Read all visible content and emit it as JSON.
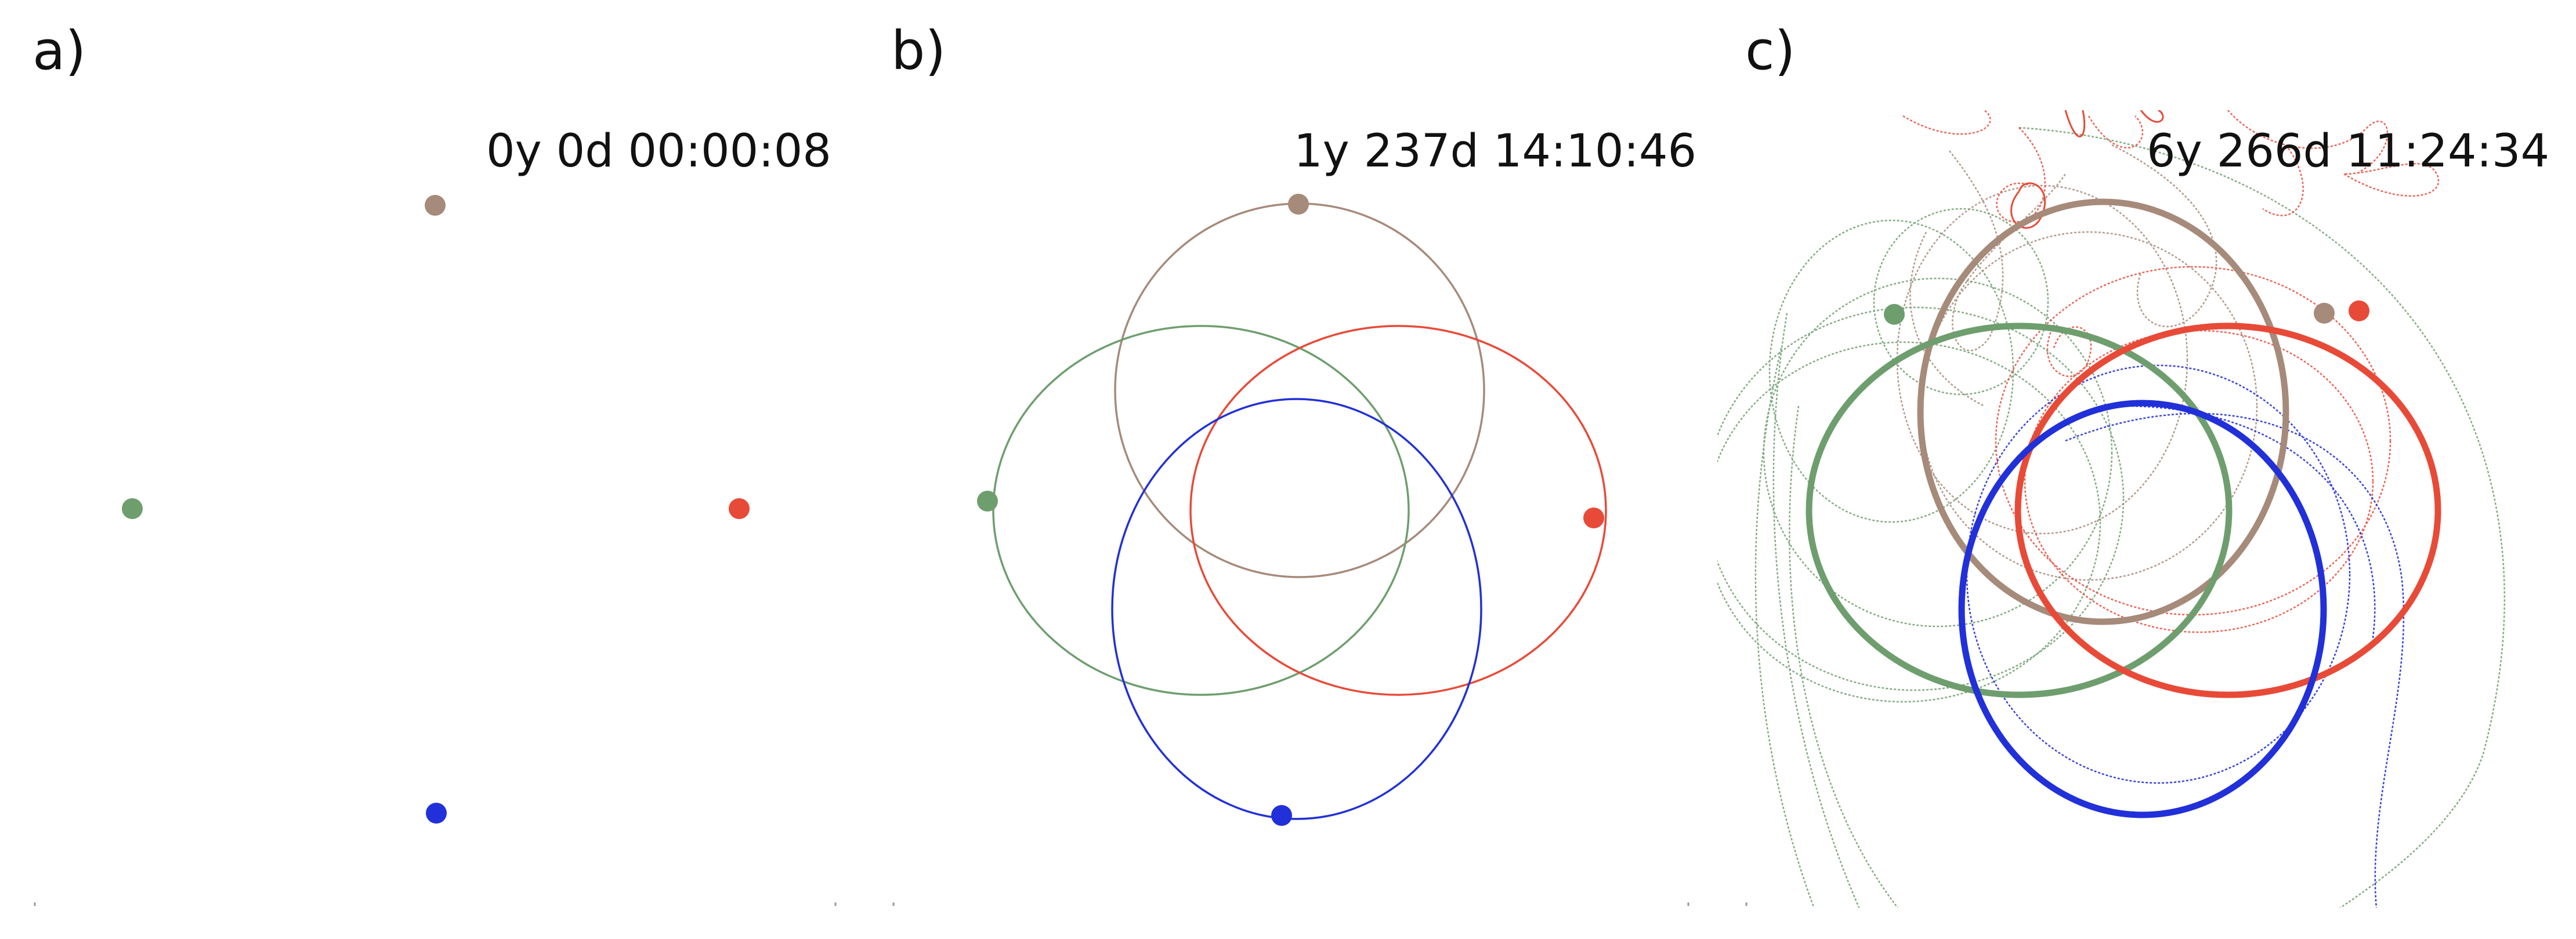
{
  "panels": [
    {
      "letter": "a)",
      "timestamp": "0y 0d 00:00:08"
    },
    {
      "letter": "b)",
      "timestamp": "1y 237d 14:10:46"
    },
    {
      "letter": "c)",
      "timestamp": "6y 266d 11:24:34"
    }
  ],
  "colors": {
    "brown": "#a68a7a",
    "green": "#6e9e6e",
    "red": "#e84a38",
    "blue": "#2130d8",
    "text": "#111111"
  }
}
